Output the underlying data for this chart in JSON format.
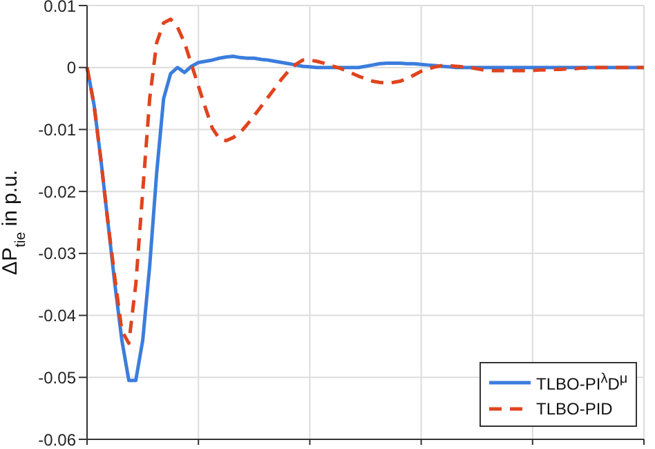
{
  "chart_data": {
    "type": "line",
    "ylabel": "ΔP$_{tie}$ in p.u.",
    "categories": [
      null,
      null,
      null,
      null,
      null,
      null,
      null,
      null,
      null,
      null,
      null,
      null,
      null,
      null,
      null,
      null,
      null,
      null,
      null,
      null,
      null,
      null,
      null,
      null,
      null,
      null,
      null,
      null,
      null,
      null,
      null,
      null,
      null,
      null,
      null,
      null,
      null,
      null,
      null,
      null,
      null,
      null,
      null,
      null,
      null,
      null,
      null,
      null,
      null,
      null,
      null,
      null,
      null,
      null,
      null,
      null,
      null,
      null,
      null,
      null,
      null,
      null,
      null,
      null,
      null,
      null,
      null,
      null,
      null,
      null,
      null,
      null,
      null,
      null,
      null,
      null,
      null,
      null,
      null,
      null,
      null
    ],
    "ylim": [
      -0.06,
      0.01
    ],
    "yticks": [
      0.01,
      0,
      -0.01,
      -0.02,
      -0.03,
      -0.04,
      -0.05,
      -0.06
    ],
    "tick_labels": "y",
    "grid": true,
    "legend": "bottom right",
    "series": [
      {
        "name": "TLBO-PI$^{λ}$D$^{μ}$",
        "color": "#3b7ddd",
        "line_style": "solid",
        "values": [
          0,
          -0.006,
          -0.015,
          -0.025,
          -0.035,
          -0.044,
          -0.0505,
          -0.0505,
          -0.044,
          -0.032,
          -0.017,
          -0.005,
          -0.001,
          0,
          -0.0008,
          0.0002,
          0.0008,
          0.001,
          0.0012,
          0.0015,
          0.0017,
          0.0018,
          0.0016,
          0.0015,
          0.0015,
          0.0013,
          0.0012,
          0.001,
          0.0008,
          0.0006,
          0.0004,
          0.0002,
          0.0001,
          0,
          0,
          0,
          0,
          0,
          0,
          0,
          0.0002,
          0.0004,
          0.0006,
          0.0007,
          0.0007,
          0.0007,
          0.0006,
          0.0006,
          0.0005,
          0.0004,
          0.0003,
          0.0002,
          0.0001,
          0,
          0,
          0,
          0,
          0,
          0,
          0,
          0,
          0,
          0,
          0,
          0,
          0,
          0,
          0,
          0,
          0,
          0,
          0,
          0,
          0,
          0,
          0,
          0,
          0,
          0,
          0,
          0
        ]
      },
      {
        "name": "TLBO-PID",
        "color": "#e0441e",
        "line_style": "dashed",
        "values": [
          0,
          -0.006,
          -0.015,
          -0.025,
          -0.034,
          -0.0425,
          -0.0445,
          -0.035,
          -0.02,
          -0.005,
          0.004,
          0.0072,
          0.0078,
          0.0065,
          0.004,
          0.0005,
          -0.003,
          -0.0065,
          -0.0098,
          -0.0115,
          -0.0118,
          -0.0113,
          -0.0105,
          -0.0092,
          -0.0078,
          -0.0063,
          -0.0048,
          -0.0033,
          -0.0018,
          -0.0005,
          0.0005,
          0.0012,
          0.0012,
          0.001,
          0.0007,
          0.0003,
          0,
          -0.0004,
          -0.0009,
          -0.0014,
          -0.0018,
          -0.0022,
          -0.0024,
          -0.0025,
          -0.0024,
          -0.0022,
          -0.0018,
          -0.0012,
          -0.0006,
          -0.0002,
          0.0001,
          0.0003,
          0.0003,
          0.0002,
          0.0001,
          0,
          -0.0002,
          -0.0004,
          -0.0005,
          -0.0005,
          -0.0005,
          -0.0005,
          -0.0005,
          -0.0005,
          -0.0005,
          -0.0004,
          -0.0004,
          -0.0003,
          -0.0003,
          -0.0002,
          -0.0002,
          -0.0001,
          -0.0001,
          0,
          0,
          0,
          0,
          0,
          0,
          0,
          0
        ]
      }
    ]
  }
}
